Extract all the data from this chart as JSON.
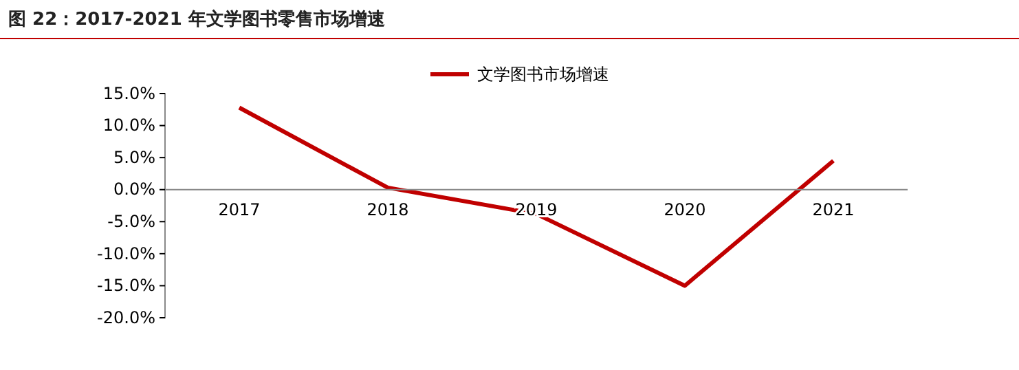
{
  "chart_data": {
    "type": "line",
    "title": "图 22：2017-2021 年文学图书零售市场增速",
    "categories": [
      "2017",
      "2018",
      "2019",
      "2020",
      "2021"
    ],
    "series": [
      {
        "name": "文学图书市场增速",
        "color": "#c00000",
        "values": [
          12.8,
          0.3,
          -3.8,
          -15.0,
          4.5
        ]
      }
    ],
    "ylim": [
      -20,
      15
    ],
    "yticks": [
      {
        "value": -20,
        "label": "-20.0%"
      },
      {
        "value": -15,
        "label": "-15.0%"
      },
      {
        "value": -10,
        "label": "-10.0%"
      },
      {
        "value": -5,
        "label": "-5.0%"
      },
      {
        "value": 0,
        "label": "0.0%"
      },
      {
        "value": 5,
        "label": "5.0%"
      },
      {
        "value": 10,
        "label": "10.0%"
      },
      {
        "value": 15,
        "label": "15.0%"
      }
    ],
    "legend": "top",
    "grid": false,
    "line_style": "solid",
    "marker": "none"
  }
}
